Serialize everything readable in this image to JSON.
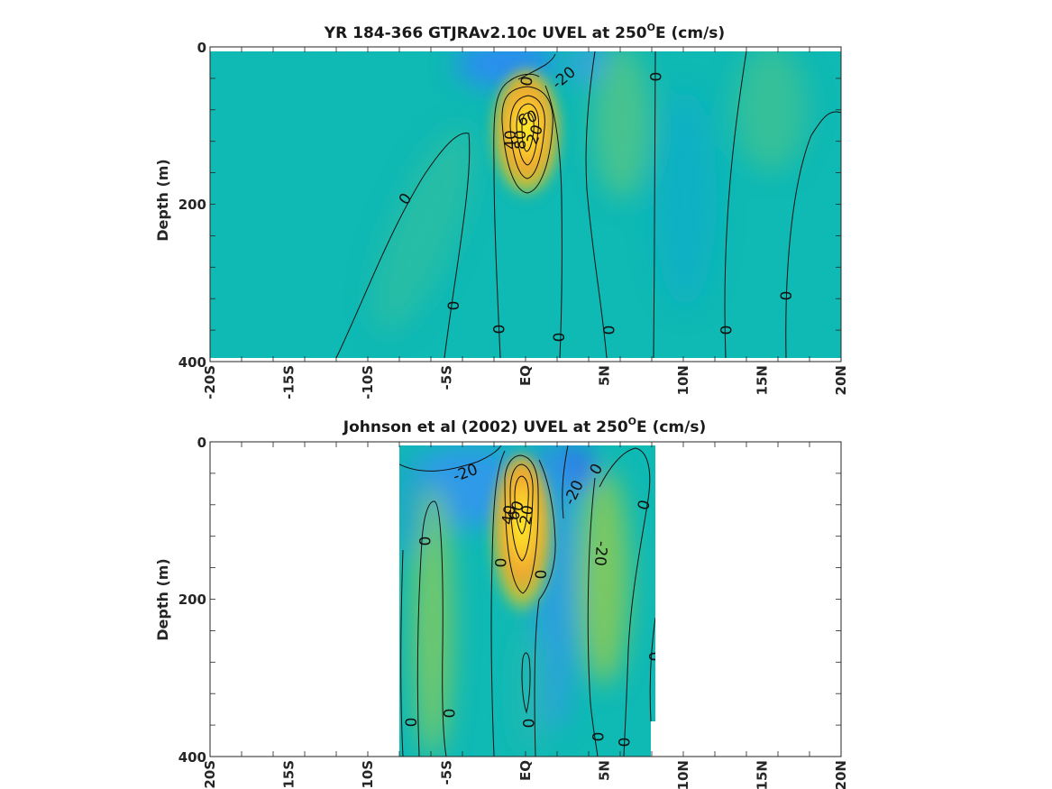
{
  "chart_data": [
    {
      "type": "heatmap",
      "title_main": "YR 184-366 GTJRAv2.10c UVEL at 250",
      "title_sup": "O",
      "title_tail": "E (cm/s)",
      "ylabel": "Depth (m)",
      "xlabel": "",
      "x_ticks": [
        "-20S",
        "-15S",
        "-10S",
        "-5S",
        "EQ",
        "5N",
        "10N",
        "15N",
        "20N"
      ],
      "y_ticks": [
        "0",
        "200",
        "400"
      ],
      "xlim": [
        -20,
        20
      ],
      "ylim": [
        0,
        400
      ],
      "grid": false,
      "contour_labels": [
        "0",
        "-20",
        "0",
        "40",
        "80",
        "60",
        "20",
        "0",
        "0",
        "0",
        "0",
        "0",
        "0",
        "0"
      ],
      "colors": {
        "background": "#0fb9b4",
        "westward": "#2f8cf0",
        "eastward_peak": "#fef021",
        "eastward_mid": "#f6a62b"
      }
    },
    {
      "type": "heatmap",
      "title_main": "Johnson et al (2002) UVEL at 250",
      "title_sup": "O",
      "title_tail": "E (cm/s)",
      "ylabel": "Depth (m)",
      "xlabel": "",
      "x_ticks": [
        "-20S",
        "-15S",
        "-10S",
        "-5S",
        "EQ",
        "5N",
        "10N",
        "15N",
        "20N"
      ],
      "y_ticks": [
        "0",
        "200",
        "400"
      ],
      "xlim": [
        -20,
        20
      ],
      "ylim": [
        0,
        400
      ],
      "data_xrange": [
        -8,
        8
      ],
      "grid": false,
      "contour_labels": [
        "-20",
        "-20",
        "0",
        "0",
        "0",
        "40",
        "60",
        "20",
        "0",
        "0",
        "-20",
        "0",
        "0",
        "0",
        "0",
        "0",
        "0"
      ],
      "colors": {
        "background": "#0fb9b4",
        "westward": "#2f8cf0",
        "eastward_peak": "#fef021",
        "eastward_mid": "#f6a62b"
      }
    }
  ]
}
